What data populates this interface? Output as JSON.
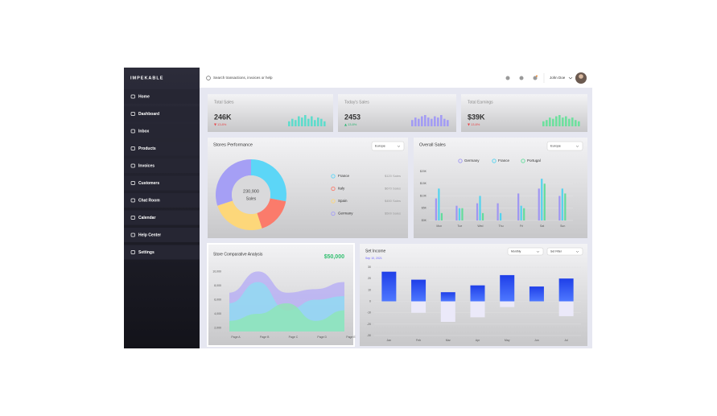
{
  "brand": "IMPEKABLE",
  "menu": [
    "Home",
    "Dashboard",
    "Inbox",
    "Products",
    "Invoices",
    "Customers",
    "Chat Room",
    "Calendar",
    "Help Center",
    "Settings"
  ],
  "search": "Search transactions, invoices or help",
  "user": "John Doe",
  "stats": [
    {
      "title": "Total Sales",
      "value": "246K",
      "change": "13.8%",
      "trend": "down",
      "color": "#5fdccc",
      "spark": [
        4,
        6,
        5,
        8,
        7,
        9,
        6,
        8,
        5,
        7,
        6,
        4
      ]
    },
    {
      "title": "Today's Sales",
      "value": "2453",
      "change": "13.8%",
      "trend": "up",
      "color": "#a39cf4",
      "spark": [
        5,
        7,
        6,
        8,
        9,
        7,
        6,
        8,
        7,
        9,
        6,
        5
      ]
    },
    {
      "title": "Total Earnings",
      "value": "$39K",
      "change": "13.8%",
      "trend": "down",
      "color": "#6ee09e",
      "spark": [
        4,
        5,
        7,
        6,
        8,
        9,
        7,
        8,
        6,
        7,
        5,
        4
      ]
    }
  ],
  "stores_performance": {
    "title": "Stores Performance",
    "filter": "Europe",
    "center_value": "230,900",
    "center_label": "Sales",
    "segments": [
      {
        "name": "France",
        "sales": "$120 Sales",
        "share": 28,
        "color": "#5cd6f7"
      },
      {
        "name": "Italy",
        "sales": "$670 Sales",
        "share": 17,
        "color": "#fb7b6b"
      },
      {
        "name": "Spain",
        "sales": "$450 Sales",
        "share": 25,
        "color": "#fdd77a"
      },
      {
        "name": "Germany",
        "sales": "$500 Sales",
        "share": 30,
        "color": "#a59ff5"
      }
    ]
  },
  "overall_sales": {
    "title": "Overall Sales",
    "filter": "Europe",
    "type": "bar",
    "categories": [
      "Mon",
      "Tue",
      "Wed",
      "Thu",
      "Fri",
      "Sat",
      "Sun"
    ],
    "series": [
      {
        "name": "Germany",
        "color": "#9f96f2",
        "values": [
          9,
          6,
          7,
          7,
          11,
          13,
          10
        ]
      },
      {
        "name": "France",
        "color": "#52d3ef",
        "values": [
          13,
          5,
          10,
          3,
          6,
          17,
          13
        ]
      },
      {
        "name": "Portugal",
        "color": "#62dd9c",
        "values": [
          3,
          5,
          3,
          0,
          5,
          15,
          11
        ]
      }
    ],
    "ylim": [
      0,
      20
    ],
    "yticks": [
      {
        "value": 0,
        "label": "$0K"
      },
      {
        "value": 5,
        "label": "$5K"
      },
      {
        "value": 10,
        "label": "$10K"
      },
      {
        "value": 15,
        "label": "$15K"
      },
      {
        "value": 20,
        "label": "$20K"
      }
    ]
  },
  "comparative": {
    "title": "Store Comparative Analysis",
    "total": "$50,000",
    "type": "area",
    "categories": [
      "Page A",
      "Page B",
      "Page C",
      "Page D",
      "Page E"
    ],
    "series": [
      {
        "color": "#b6aef5",
        "values": [
          7000,
          10000,
          7000,
          7500,
          8500
        ]
      },
      {
        "color": "#8fdcf2",
        "values": [
          5500,
          8500,
          4500,
          6000,
          6500
        ]
      },
      {
        "color": "#8ee6b4",
        "values": [
          3000,
          4000,
          5500,
          3000,
          4500
        ]
      }
    ],
    "ylim": [
      1500,
      10500
    ],
    "yticks": [
      {
        "value": 2000,
        "label": "2,000"
      },
      {
        "value": 4000,
        "label": "4,000"
      },
      {
        "value": 6000,
        "label": "6,000"
      },
      {
        "value": 8000,
        "label": "8,000"
      },
      {
        "value": 10000,
        "label": "10,000"
      }
    ]
  },
  "income": {
    "title": "Set Income",
    "date": "Sep 10, 2021",
    "filters": [
      "Monthly",
      "Set Filter"
    ],
    "type": "bar",
    "categories": [
      "Jan",
      "Feb",
      "Mar",
      "Apr",
      "May",
      "Jun",
      "Jul"
    ],
    "series": [
      {
        "color": "#2d55f6",
        "values": [
          26,
          19,
          8,
          14,
          23,
          13,
          20
        ]
      },
      {
        "color": "#ebe9f9",
        "values": [
          0,
          -10,
          -18,
          -14,
          -5,
          0,
          -13
        ]
      }
    ],
    "ylim": [
      -30,
      30
    ],
    "yticks": [
      -30,
      -20,
      -10,
      0,
      10,
      20,
      30
    ]
  }
}
